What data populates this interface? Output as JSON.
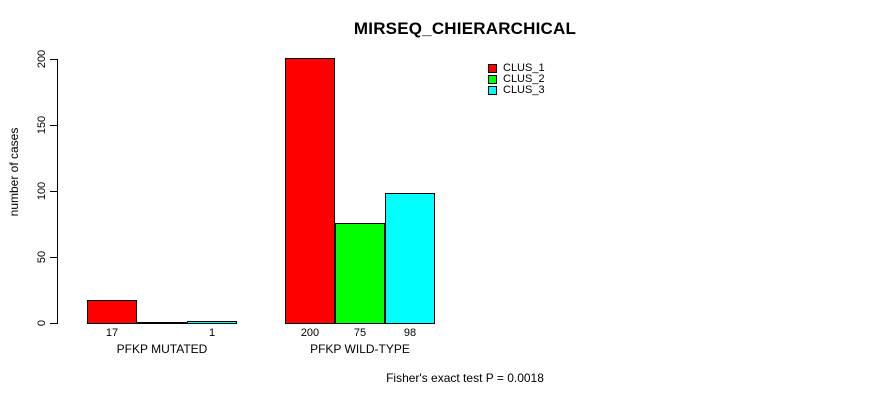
{
  "chart_data": {
    "type": "bar",
    "title": "MIRSEQ_CHIERARCHICAL",
    "xlabel": "",
    "ylabel": "number of cases",
    "ylim": [
      0,
      200
    ],
    "yticks": [
      0,
      50,
      100,
      150,
      200
    ],
    "grid": false,
    "legend_position": "top-right",
    "categories": [
      "PFKP MUTATED",
      "PFKP WILD-TYPE"
    ],
    "series": [
      {
        "name": "CLUS_1",
        "color": "#FF0000",
        "values": [
          17,
          200
        ]
      },
      {
        "name": "CLUS_2",
        "color": "#00FF00",
        "values": [
          0,
          75
        ]
      },
      {
        "name": "CLUS_3",
        "color": "#00FFFF",
        "values": [
          1,
          98
        ]
      }
    ],
    "bar_value_labels": [
      "17",
      "1",
      "200",
      "75",
      "98"
    ],
    "hide_zero_value_labels": true,
    "annotation": "Fisher's exact test P = 0.0018"
  },
  "colors": {
    "background": "#FFFFFF",
    "bar_border": "#000000",
    "axis": "#000000",
    "text": "#000000"
  }
}
